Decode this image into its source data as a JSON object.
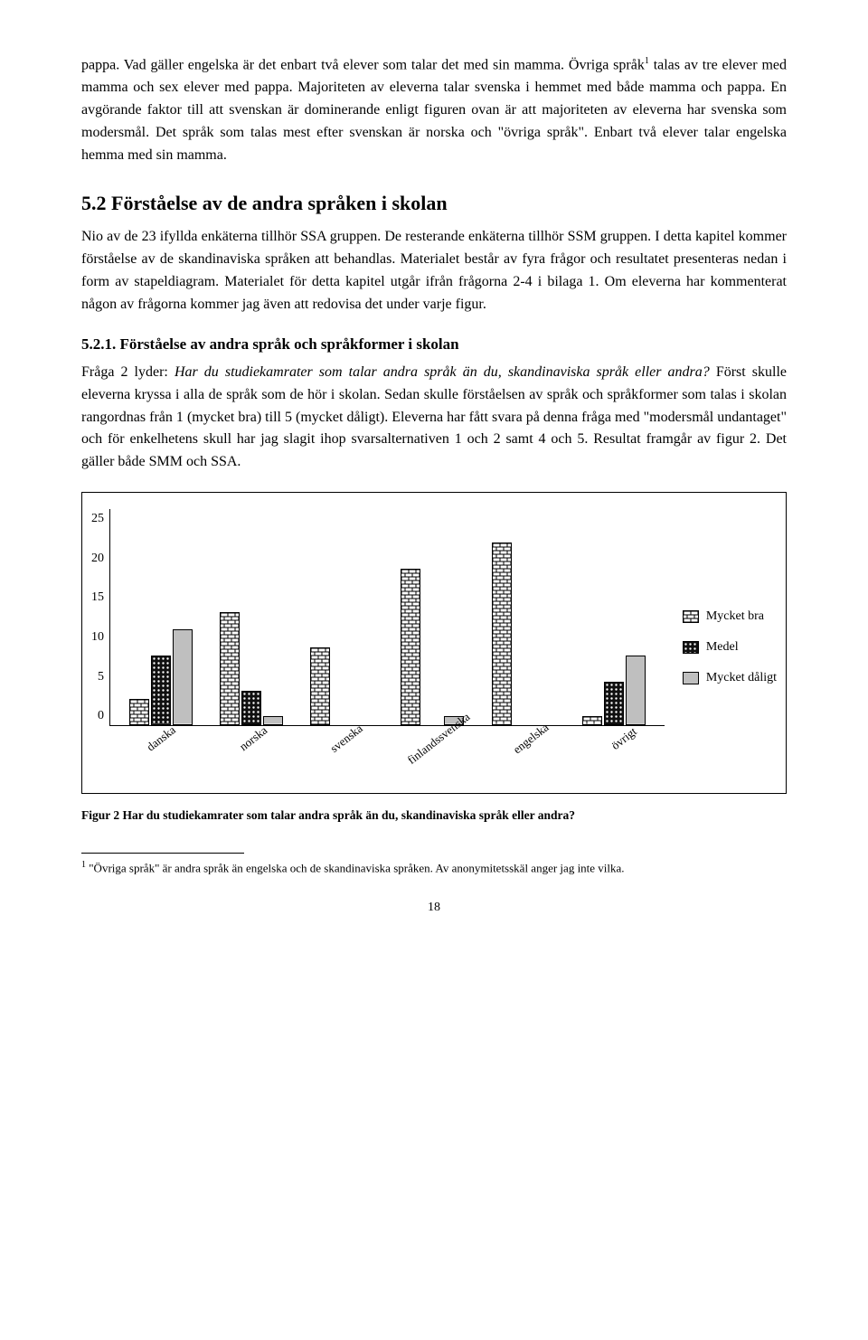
{
  "para1": "pappa. Vad gäller engelska är det enbart två elever som talar det med sin mamma. Övriga språk",
  "para1_sup": "1",
  "para1b": " talas av tre elever med mamma och sex elever med pappa. Majoriteten av eleverna talar svenska i hemmet med både mamma och pappa. En avgörande faktor till att svenskan är dominerande enligt figuren ovan är att majoriteten av eleverna har svenska som modersmål. Det språk som talas mest efter svenskan är norska och \"övriga språk\". Enbart två elever talar engelska hemma med sin mamma.",
  "h2": "5.2 Förståelse av de andra språken i skolan",
  "para2": "Nio av de 23 ifyllda enkäterna tillhör SSA gruppen. De resterande enkäterna tillhör SSM gruppen. I detta kapitel kommer förståelse av de skandinaviska språken att behandlas. Materialet består av fyra frågor och resultatet presenteras nedan i form av stapeldiagram. Materialet för detta kapitel utgår ifrån frågorna 2-4 i bilaga 1. Om eleverna har kommenterat någon av frågorna kommer jag även att redovisa det under varje figur.",
  "h3": "5.2.1. Förståelse av andra språk och språkformer i skolan",
  "para3a": "Fråga 2 lyder: ",
  "para3_italic": "Har du studiekamrater som talar andra språk än du, skandinaviska språk eller andra?",
  "para3b": " Först skulle eleverna kryssa i alla de språk som de hör i skolan. Sedan skulle förståelsen av språk och språkformer som talas i skolan rangordnas från 1 (mycket bra) till 5 (mycket dåligt). Eleverna har fått svara på denna fråga med \"modersmål undantaget\" och för enkelhetens skull har jag slagit ihop svarsalternativen 1 och 2 samt 4 och 5. Resultat framgår av figur 2. Det gäller både SMM och SSA.",
  "chart": {
    "ymax": 25,
    "ticks": [
      "25",
      "20",
      "15",
      "10",
      "5",
      "0"
    ],
    "categories": [
      "danska",
      "norska",
      "svenska",
      "finlandssvenska",
      "engelska",
      "övrigt"
    ],
    "series": [
      {
        "name": "Mycket bra",
        "pattern": "brick",
        "values": [
          3,
          13,
          9,
          18,
          21,
          1
        ]
      },
      {
        "name": "Medel",
        "pattern": "dots",
        "values": [
          8,
          4,
          0,
          0,
          0,
          5
        ]
      },
      {
        "name": "Mycket dåligt",
        "pattern": "solid",
        "values": [
          11,
          1,
          0,
          1,
          0,
          8
        ]
      }
    ],
    "legend": [
      "Mycket bra",
      "Medel",
      "Mycket dåligt"
    ],
    "colors": {
      "solid": "#bfbfbf"
    }
  },
  "caption": "Figur 2 Har du studiekamrater som talar andra språk än du, skandinaviska språk eller andra?",
  "footnote_num": "1",
  "footnote": " \"Övriga språk\" är andra språk än engelska och de skandinaviska språken. Av anonymitetsskäl anger jag inte vilka.",
  "pagenum": "18"
}
